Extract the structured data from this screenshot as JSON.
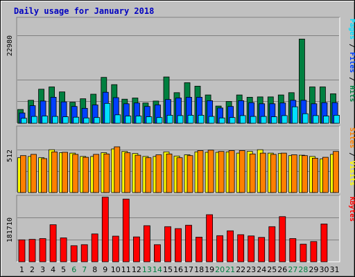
{
  "colors": {
    "hits": "#008040",
    "files": "#0040ff",
    "pages": "#00e0ff",
    "visits": "#ffff00",
    "sites": "#ff8000",
    "kbytes": "#ff0000",
    "panel_bg": "#c0c0c0",
    "title": "#0000c0",
    "weekend_label": "#008040",
    "weekday_label": "#000000"
  },
  "chart_data": {
    "type": "bar",
    "title": "Daily usage for January 2018",
    "categories": [
      "1",
      "2",
      "3",
      "4",
      "5",
      "6",
      "7",
      "8",
      "9",
      "10",
      "11",
      "12",
      "13",
      "14",
      "15",
      "16",
      "17",
      "18",
      "19",
      "20",
      "21",
      "22",
      "23",
      "24",
      "25",
      "26",
      "27",
      "28",
      "29",
      "30",
      "31"
    ],
    "weekend_days": [
      "6",
      "7",
      "13",
      "14",
      "20",
      "21",
      "27",
      "28"
    ],
    "panels": [
      {
        "id": "traffic",
        "ymax_label": "22980",
        "ymax": 22980,
        "right_label": {
          "pages": "Pages",
          "files": "Files",
          "hits": "Hits",
          "sep": " / "
        },
        "series": [
          {
            "key": "hits",
            "name": "Hits",
            "values": [
              3600,
              6000,
              8900,
              9500,
              8200,
              5500,
              6400,
              7600,
              12000,
              10100,
              6300,
              6600,
              5300,
              5800,
              12100,
              8000,
              10600,
              9700,
              7400,
              4500,
              5700,
              7400,
              6800,
              6900,
              6900,
              7400,
              8000,
              22000,
              9500,
              9500,
              7700
            ]
          },
          {
            "key": "files",
            "name": "Files",
            "values": [
              2700,
              4600,
              5800,
              6800,
              5600,
              4400,
              3900,
              4800,
              8100,
              6700,
              5100,
              5300,
              4400,
              4800,
              6200,
              6600,
              6800,
              6800,
              5900,
              4000,
              4400,
              5900,
              5400,
              5100,
              5100,
              5300,
              6000,
              6000,
              5100,
              5400,
              5400
            ]
          },
          {
            "key": "pages",
            "name": "Pages",
            "values": [
              1300,
              1800,
              1900,
              1800,
              1700,
              1600,
              1400,
              1500,
              5200,
              2200,
              1900,
              1900,
              1700,
              1500,
              2100,
              2000,
              2100,
              2100,
              1800,
              1400,
              1500,
              2000,
              1800,
              1800,
              1700,
              2000,
              4300,
              2500,
              2000,
              1900,
              2100
            ]
          }
        ]
      },
      {
        "id": "visits",
        "ymax_label": "512",
        "ymax": 512,
        "right_label": {
          "sites": "Sites",
          "visits": "Visits",
          "sep": " / "
        },
        "series": [
          {
            "key": "visits",
            "name": "Visits",
            "values": [
              415,
              430,
              415,
              510,
              475,
              470,
              430,
              430,
              475,
              520,
              490,
              465,
              430,
              430,
              485,
              435,
              450,
              485,
              480,
              480,
              485,
              470,
              490,
              510,
              470,
              465,
              440,
              445,
              430,
              400,
              455
            ]
          },
          {
            "key": "sites",
            "name": "Sites",
            "values": [
              440,
              455,
              405,
              485,
              480,
              455,
              420,
              455,
              460,
              545,
              475,
              445,
              415,
              450,
              460,
              415,
              440,
              500,
              505,
              490,
              500,
              500,
              460,
              470,
              455,
              470,
              450,
              440,
              410,
              420,
              490
            ]
          }
        ]
      },
      {
        "id": "kbytes",
        "ymax_label": "181710",
        "ymax": 181710,
        "right_label": {
          "kbytes": "KBytes"
        },
        "series": [
          {
            "key": "kbytes",
            "name": "KBytes",
            "values": [
              90000,
              92000,
              95000,
              152000,
              98000,
              66000,
              70000,
              114000,
              265000,
              105000,
              257000,
              102000,
              148000,
              70000,
              144000,
              136000,
              150000,
              101000,
              193000,
              107000,
              127000,
              111000,
              106000,
              100000,
              144000,
              185000,
              95000,
              72000,
              83000,
              155000,
              0
            ]
          }
        ]
      }
    ]
  }
}
